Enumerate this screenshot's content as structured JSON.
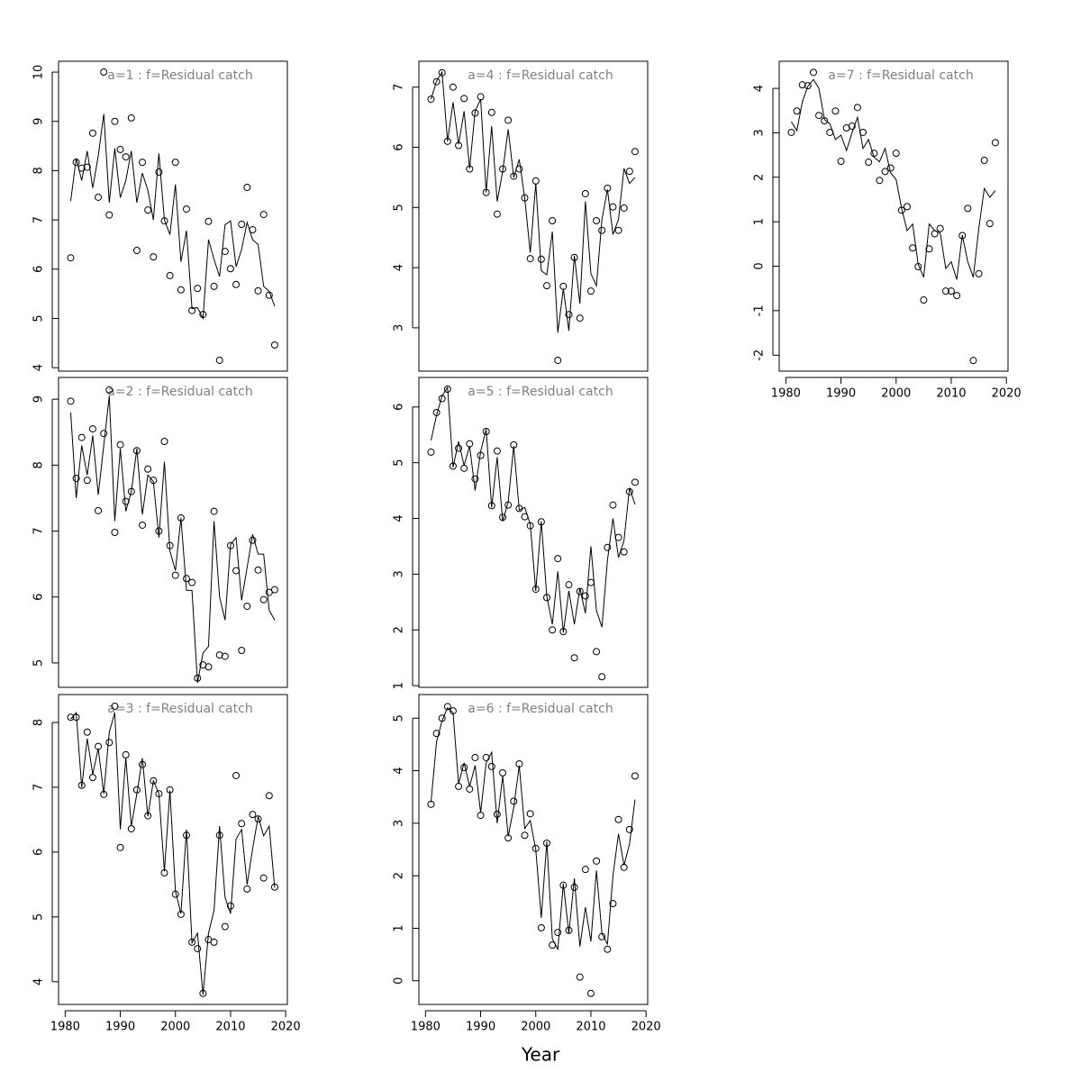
{
  "xlabel": "Year",
  "chart_data": [
    {
      "type": "line",
      "title": "a=1  :  f=Residual catch",
      "x": [
        1981,
        1982,
        1983,
        1984,
        1985,
        1986,
        1987,
        1988,
        1989,
        1990,
        1991,
        1992,
        1993,
        1994,
        1995,
        1996,
        1997,
        1998,
        1999,
        2000,
        2001,
        2002,
        2003,
        2004,
        2005,
        2006,
        2007,
        2008,
        2009,
        2010,
        2011,
        2012,
        2013,
        2014,
        2015,
        2016,
        2017,
        2018
      ],
      "series": [
        {
          "marker": "circle",
          "color": "#000000",
          "values": [
            6.23,
            8.17,
            8.05,
            8.07,
            8.76,
            7.46,
            10.0,
            7.1,
            9.0,
            8.43,
            8.28,
            9.07,
            6.38,
            8.17,
            7.2,
            6.25,
            7.97,
            6.98,
            5.87,
            8.17,
            5.58,
            7.22,
            5.16,
            5.61,
            5.08,
            6.97,
            5.65,
            4.15,
            6.36,
            6.01,
            5.69,
            6.91,
            7.66,
            6.8,
            5.56,
            7.11,
            5.47,
            4.46
          ]
        },
        {
          "marker": "line",
          "color": "#000000",
          "values": [
            7.38,
            8.25,
            7.8,
            8.4,
            7.65,
            8.3,
            9.15,
            7.35,
            8.45,
            7.45,
            7.8,
            8.4,
            7.35,
            7.95,
            7.6,
            7.0,
            8.35,
            7.0,
            6.7,
            7.72,
            6.15,
            6.78,
            5.2,
            5.22,
            5.0,
            6.6,
            6.2,
            5.85,
            6.9,
            6.98,
            6.05,
            6.4,
            6.95,
            6.6,
            6.5,
            5.65,
            5.55,
            5.25
          ]
        }
      ],
      "xlim": [
        1978.8,
        2020.3
      ],
      "ylim": [
        3.93,
        10.22
      ],
      "yticks": [
        4,
        5,
        6,
        7,
        8,
        9,
        10
      ]
    },
    {
      "type": "line",
      "title": "a=2  :  f=Residual catch",
      "x": [
        1981,
        1982,
        1983,
        1984,
        1985,
        1986,
        1987,
        1988,
        1989,
        1990,
        1991,
        1992,
        1993,
        1994,
        1995,
        1996,
        1997,
        1998,
        1999,
        2000,
        2001,
        2002,
        2003,
        2004,
        2005,
        2006,
        2007,
        2008,
        2009,
        2010,
        2011,
        2012,
        2013,
        2014,
        2015,
        2016,
        2017,
        2018
      ],
      "series": [
        {
          "marker": "circle",
          "color": "#000000",
          "values": [
            8.97,
            7.8,
            8.42,
            7.77,
            8.55,
            7.31,
            8.48,
            9.14,
            6.98,
            8.31,
            7.45,
            7.6,
            8.22,
            7.09,
            7.94,
            7.77,
            7.0,
            8.36,
            6.78,
            6.33,
            7.2,
            6.28,
            6.22,
            4.77,
            4.97,
            4.94,
            7.3,
            5.12,
            5.1,
            6.78,
            6.4,
            5.19,
            5.86,
            6.86,
            6.41,
            5.96,
            6.07,
            6.11
          ]
        },
        {
          "marker": "line",
          "color": "#000000",
          "values": [
            8.8,
            7.5,
            8.3,
            7.85,
            8.45,
            7.55,
            8.3,
            9.05,
            7.15,
            8.25,
            7.3,
            7.6,
            8.25,
            7.25,
            7.85,
            7.75,
            6.9,
            8.05,
            6.7,
            6.4,
            7.2,
            6.1,
            6.1,
            4.7,
            5.15,
            5.25,
            7.15,
            6.0,
            5.65,
            6.8,
            6.9,
            5.95,
            6.45,
            6.95,
            6.65,
            6.65,
            5.8,
            5.65
          ]
        }
      ],
      "xlim": [
        1978.8,
        2020.3
      ],
      "ylim": [
        4.63,
        9.33
      ],
      "yticks": [
        5,
        6,
        7,
        8,
        9
      ]
    },
    {
      "type": "line",
      "title": "a=3  :  f=Residual catch",
      "x": [
        1981,
        1982,
        1983,
        1984,
        1985,
        1986,
        1987,
        1988,
        1989,
        1990,
        1991,
        1992,
        1993,
        1994,
        1995,
        1996,
        1997,
        1998,
        1999,
        2000,
        2001,
        2002,
        2003,
        2004,
        2005,
        2006,
        2007,
        2008,
        2009,
        2010,
        2011,
        2012,
        2013,
        2014,
        2015,
        2016,
        2017,
        2018
      ],
      "series": [
        {
          "marker": "circle",
          "color": "#000000",
          "values": [
            8.08,
            8.08,
            7.03,
            7.85,
            7.15,
            7.63,
            6.89,
            7.69,
            8.25,
            6.07,
            7.5,
            6.36,
            6.96,
            7.35,
            6.56,
            7.1,
            6.9,
            5.68,
            6.96,
            5.35,
            5.04,
            6.26,
            4.61,
            4.51,
            3.82,
            4.65,
            4.61,
            6.26,
            4.85,
            5.17,
            7.18,
            6.44,
            5.43,
            6.58,
            6.51,
            5.6,
            6.87,
            5.46
          ]
        },
        {
          "marker": "line",
          "color": "#000000",
          "values": [
            8.05,
            8.15,
            7.0,
            7.75,
            7.2,
            7.6,
            6.9,
            7.85,
            8.15,
            6.35,
            7.45,
            6.4,
            6.9,
            7.45,
            6.55,
            7.1,
            6.9,
            5.7,
            6.95,
            5.4,
            5.05,
            6.35,
            4.6,
            4.75,
            3.8,
            4.75,
            5.1,
            6.4,
            5.3,
            5.05,
            6.2,
            6.35,
            5.5,
            6.05,
            6.55,
            6.25,
            6.4,
            5.45
          ]
        }
      ],
      "xlim": [
        1978.8,
        2020.3
      ],
      "ylim": [
        3.65,
        8.43
      ],
      "yticks": [
        4,
        5,
        6,
        7,
        8
      ],
      "xticks": [
        1980,
        1990,
        2000,
        2010,
        2020
      ]
    },
    {
      "type": "line",
      "title": "a=4  :  f=Residual catch",
      "x": [
        1981,
        1982,
        1983,
        1984,
        1985,
        1986,
        1987,
        1988,
        1989,
        1990,
        1991,
        1992,
        1993,
        1994,
        1995,
        1996,
        1997,
        1998,
        1999,
        2000,
        2001,
        2002,
        2003,
        2004,
        2005,
        2006,
        2007,
        2008,
        2009,
        2010,
        2011,
        2012,
        2013,
        2014,
        2015,
        2016,
        2017,
        2018
      ],
      "series": [
        {
          "marker": "circle",
          "color": "#000000",
          "values": [
            6.8,
            7.09,
            7.24,
            6.1,
            7.0,
            6.03,
            6.81,
            5.64,
            6.57,
            6.84,
            5.25,
            6.58,
            4.89,
            5.64,
            6.45,
            5.52,
            5.64,
            5.16,
            4.15,
            5.44,
            4.14,
            3.7,
            4.78,
            2.46,
            3.69,
            3.22,
            4.17,
            3.16,
            5.23,
            3.61,
            4.78,
            4.62,
            5.32,
            5.01,
            4.62,
            4.99,
            5.6,
            5.93
          ]
        },
        {
          "marker": "line",
          "color": "#000000",
          "values": [
            6.8,
            7.1,
            7.25,
            6.1,
            6.75,
            6.05,
            6.6,
            5.65,
            6.6,
            6.8,
            5.25,
            6.35,
            5.1,
            5.6,
            6.3,
            5.5,
            5.8,
            5.15,
            4.25,
            5.4,
            3.95,
            3.88,
            4.6,
            2.92,
            3.65,
            2.95,
            4.2,
            3.4,
            5.1,
            3.9,
            3.7,
            4.8,
            5.3,
            4.55,
            4.8,
            5.65,
            5.4,
            5.5
          ]
        }
      ],
      "xlim": [
        1978.8,
        2020.3
      ],
      "ylim": [
        2.28,
        7.43
      ],
      "yticks": [
        3,
        4,
        5,
        6,
        7
      ]
    },
    {
      "type": "line",
      "title": "a=5  :  f=Residual catch",
      "x": [
        1981,
        1982,
        1983,
        1984,
        1985,
        1986,
        1987,
        1988,
        1989,
        1990,
        1991,
        1992,
        1993,
        1994,
        1995,
        1996,
        1997,
        1998,
        1999,
        2000,
        2001,
        2002,
        2003,
        2004,
        2005,
        2006,
        2007,
        2008,
        2009,
        2010,
        2011,
        2012,
        2013,
        2014,
        2015,
        2016,
        2017,
        2018
      ],
      "series": [
        {
          "marker": "circle",
          "color": "#000000",
          "values": [
            5.19,
            5.9,
            6.15,
            6.32,
            4.94,
            5.26,
            4.9,
            5.34,
            4.71,
            5.13,
            5.56,
            4.23,
            5.21,
            4.02,
            4.24,
            5.32,
            4.18,
            4.03,
            3.87,
            2.73,
            3.94,
            2.58,
            2.0,
            3.28,
            1.97,
            2.81,
            1.5,
            2.69,
            2.61,
            2.85,
            1.61,
            1.16,
            3.48,
            4.24,
            3.66,
            3.4,
            4.48,
            4.65
          ]
        },
        {
          "marker": "line",
          "color": "#000000",
          "values": [
            5.4,
            5.85,
            6.2,
            6.35,
            4.92,
            5.38,
            4.95,
            5.3,
            4.5,
            5.2,
            5.6,
            4.2,
            5.1,
            3.95,
            4.3,
            5.3,
            4.15,
            4.2,
            3.9,
            2.7,
            3.95,
            2.6,
            2.1,
            3.05,
            1.95,
            2.7,
            2.1,
            2.75,
            2.3,
            3.5,
            2.35,
            2.05,
            3.25,
            4.0,
            3.3,
            3.6,
            4.55,
            4.25
          ]
        }
      ],
      "xlim": [
        1978.8,
        2020.3
      ],
      "ylim": [
        0.97,
        6.53
      ],
      "yticks": [
        1,
        2,
        3,
        4,
        5,
        6
      ]
    },
    {
      "type": "line",
      "title": "a=6  :  f=Residual catch",
      "x": [
        1981,
        1982,
        1983,
        1984,
        1985,
        1986,
        1987,
        1988,
        1989,
        1990,
        1991,
        1992,
        1993,
        1994,
        1995,
        1996,
        1997,
        1998,
        1999,
        2000,
        2001,
        2002,
        2003,
        2004,
        2005,
        2006,
        2007,
        2008,
        2009,
        2010,
        2011,
        2012,
        2013,
        2014,
        2015,
        2016,
        2017,
        2018
      ],
      "series": [
        {
          "marker": "circle",
          "color": "#000000",
          "values": [
            3.36,
            4.71,
            5.0,
            5.22,
            5.14,
            3.7,
            4.06,
            3.65,
            4.25,
            3.15,
            4.25,
            4.08,
            3.17,
            3.96,
            2.72,
            3.42,
            4.13,
            2.77,
            3.18,
            2.52,
            1.01,
            2.62,
            0.68,
            0.92,
            1.82,
            0.96,
            1.78,
            0.07,
            2.12,
            -0.24,
            2.28,
            0.84,
            0.6,
            1.47,
            3.07,
            2.16,
            2.88,
            3.9
          ]
        },
        {
          "marker": "line",
          "color": "#000000",
          "values": [
            3.4,
            4.55,
            4.95,
            5.2,
            5.1,
            3.75,
            4.15,
            3.7,
            4.1,
            3.2,
            4.15,
            4.35,
            3.0,
            3.9,
            2.75,
            3.3,
            4.1,
            2.9,
            3.05,
            2.5,
            1.2,
            2.65,
            0.8,
            0.6,
            1.85,
            0.9,
            1.95,
            0.65,
            1.4,
            0.75,
            2.1,
            0.9,
            0.7,
            2.0,
            2.8,
            2.2,
            2.6,
            3.45
          ]
        }
      ],
      "xlim": [
        1978.8,
        2020.3
      ],
      "ylim": [
        -0.45,
        5.45
      ],
      "yticks": [
        0,
        1,
        2,
        3,
        4,
        5
      ],
      "xticks": [
        1980,
        1990,
        2000,
        2010,
        2020
      ]
    },
    {
      "type": "line",
      "title": "a=7  :  f=Residual catch",
      "x": [
        1981,
        1982,
        1983,
        1984,
        1985,
        1986,
        1987,
        1988,
        1989,
        1990,
        1991,
        1992,
        1993,
        1994,
        1995,
        1996,
        1997,
        1998,
        1999,
        2000,
        2001,
        2002,
        2003,
        2004,
        2005,
        2006,
        2007,
        2008,
        2009,
        2010,
        2011,
        2012,
        2013,
        2014,
        2015,
        2016,
        2017,
        2018
      ],
      "series": [
        {
          "marker": "circle",
          "color": "#000000",
          "values": [
            3.01,
            3.49,
            4.08,
            4.06,
            4.36,
            3.39,
            3.27,
            3.01,
            3.49,
            2.36,
            3.11,
            3.15,
            3.57,
            3.01,
            2.34,
            2.54,
            1.93,
            2.13,
            2.21,
            2.54,
            1.26,
            1.34,
            0.41,
            -0.01,
            -0.76,
            0.39,
            0.73,
            0.85,
            -0.56,
            -0.56,
            -0.66,
            0.69,
            1.3,
            -2.12,
            -0.17,
            2.38,
            0.96,
            2.78
          ]
        },
        {
          "marker": "line",
          "color": "#000000",
          "values": [
            3.25,
            3.05,
            3.7,
            4.05,
            4.2,
            4.0,
            3.3,
            3.2,
            2.85,
            2.95,
            2.6,
            3.0,
            3.35,
            2.65,
            2.85,
            2.45,
            2.35,
            2.65,
            2.1,
            1.95,
            1.3,
            0.8,
            0.95,
            0.05,
            -0.25,
            0.95,
            0.8,
            0.75,
            -0.05,
            0.1,
            -0.3,
            0.7,
            0.1,
            -0.25,
            0.85,
            1.75,
            1.55,
            1.7
          ]
        }
      ],
      "xlim": [
        1978.8,
        2020.3
      ],
      "ylim": [
        -2.36,
        4.61
      ],
      "yticks": [
        -2,
        -1,
        0,
        1,
        2,
        3,
        4
      ],
      "xticks": [
        1980,
        1990,
        2000,
        2010,
        2020
      ]
    }
  ]
}
